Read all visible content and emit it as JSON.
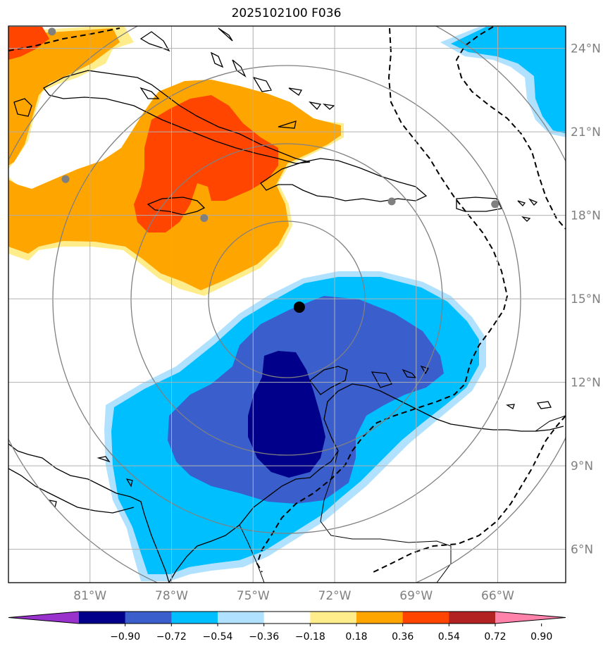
{
  "title": "2025102100 F036",
  "map": {
    "lon_range": [
      -84,
      -63.5
    ],
    "lat_range": [
      4.8,
      24.8
    ],
    "lon_ticks": [
      {
        "value": -81,
        "label": "81°W"
      },
      {
        "value": -78,
        "label": "78°W"
      },
      {
        "value": -75,
        "label": "75°W"
      },
      {
        "value": -72,
        "label": "72°W"
      },
      {
        "value": -69,
        "label": "69°W"
      },
      {
        "value": -66,
        "label": "66°W"
      }
    ],
    "lat_ticks": [
      {
        "value": 24,
        "label": "24°N"
      },
      {
        "value": 21,
        "label": "21°N"
      },
      {
        "value": 18,
        "label": "18°N"
      },
      {
        "value": 15,
        "label": "15°N"
      },
      {
        "value": 12,
        "label": "12°N"
      },
      {
        "value": 9,
        "label": "9°N"
      },
      {
        "value": 6,
        "label": "6°N"
      }
    ],
    "center_marker": {
      "lon": -73.3,
      "lat": 14.7,
      "color": "#000000"
    },
    "city_markers": [
      {
        "lon": -82.4,
        "lat": 24.6
      },
      {
        "lon": -81.9,
        "lat": 19.3
      },
      {
        "lon": -76.8,
        "lat": 17.9
      },
      {
        "lon": -69.9,
        "lat": 18.5
      },
      {
        "lon": -66.1,
        "lat": 18.4
      }
    ],
    "marker_color": "#808080",
    "grid_color": "#b0b0b0",
    "range_ring_color": "#808080"
  },
  "colorbar": {
    "ticks": [
      "−0.90",
      "−0.72",
      "−0.54",
      "−0.36",
      "−0.18",
      "0.18",
      "0.36",
      "0.54",
      "0.72",
      "0.90"
    ],
    "colors": [
      "#9932cc",
      "#00008b",
      "#3a5fcd",
      "#00bfff",
      "#b0e2ff",
      "#ffffff",
      "#ffec8b",
      "#ffa500",
      "#ff4500",
      "#b22222",
      "#ff82ab"
    ]
  },
  "fill_colors": {
    "deep_negative": "#00008b",
    "mid_negative": "#3a5fcd",
    "light_negative": "#00bfff",
    "pale_negative": "#b0e2ff",
    "pale_positive": "#ffec8b",
    "light_positive": "#ffa500",
    "mid_positive": "#ff4500"
  }
}
